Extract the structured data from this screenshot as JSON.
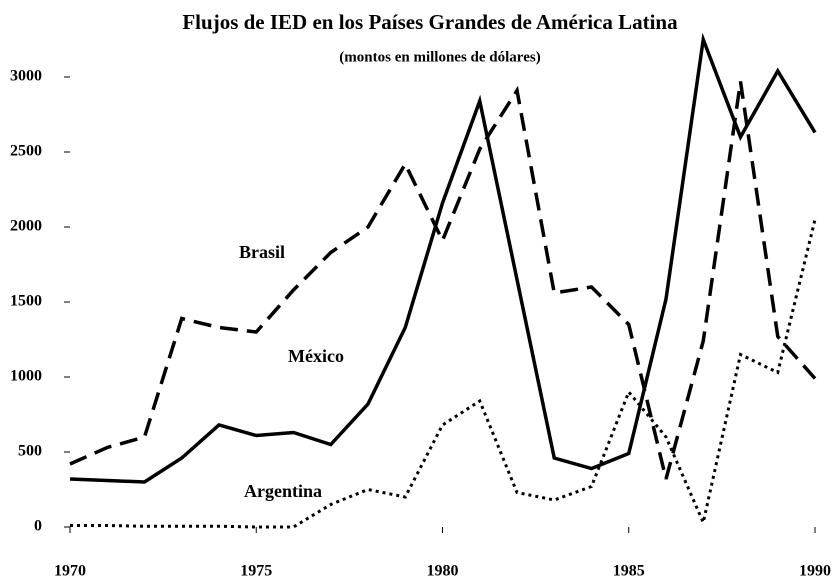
{
  "chart_data": {
    "type": "line",
    "title": "Flujos de IED en los Países Grandes de América Latina",
    "subtitle": "(montos en millones de dólares)",
    "x": [
      1970,
      1971,
      1972,
      1973,
      1974,
      1975,
      1976,
      1977,
      1978,
      1979,
      1980,
      1981,
      1982,
      1983,
      1984,
      1985,
      1986,
      1987,
      1988,
      1989,
      1990
    ],
    "series": [
      {
        "name": "México",
        "color": "#000000",
        "dash": "solid",
        "values": [
          320,
          310,
          300,
          460,
          680,
          610,
          630,
          550,
          820,
          1330,
          2160,
          2840,
          1650,
          460,
          390,
          490,
          1520,
          3250,
          2600,
          3040,
          2630
        ]
      },
      {
        "name": "Brasil",
        "color": "#000000",
        "dash": "dashed",
        "values": [
          420,
          530,
          600,
          1390,
          1330,
          1300,
          1580,
          1830,
          2000,
          2420,
          1910,
          2520,
          2910,
          1560,
          1600,
          1350,
          320,
          1240,
          2970,
          1270,
          990
        ]
      },
      {
        "name": "Argentina",
        "color": "#000000",
        "dash": "dotted",
        "values": [
          10,
          10,
          5,
          5,
          5,
          0,
          0,
          150,
          250,
          200,
          680,
          840,
          230,
          180,
          270,
          900,
          600,
          30,
          1150,
          1030,
          2050
        ]
      }
    ],
    "xlim": [
      1970,
      1990
    ],
    "xticks": [
      1970,
      1975,
      1980,
      1985,
      1990
    ],
    "ylim": [
      0,
      3000
    ],
    "yticks": [
      0,
      500,
      1000,
      1500,
      2000,
      2500,
      3000
    ],
    "grid": false
  }
}
